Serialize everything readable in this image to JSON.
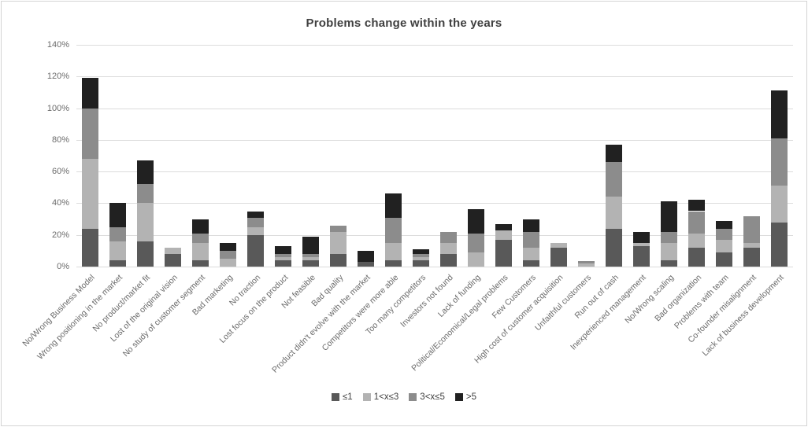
{
  "chart_data": {
    "type": "bar",
    "stacked": true,
    "title": "Problems change within the years",
    "grid": true,
    "legend_position": "bottom",
    "ylim": [
      0,
      140
    ],
    "y_ticks": [
      0,
      20,
      40,
      60,
      80,
      100,
      120,
      140
    ],
    "y_tick_labels": [
      "0%",
      "20%",
      "40%",
      "60%",
      "80%",
      "100%",
      "120%",
      "140%"
    ],
    "categories": [
      "No/Wrong Business Model",
      "Wrong positioning in the market",
      "No product/market fit",
      "Lost of the original vision",
      "No study of customer segment",
      "Bad marketing",
      "No traction",
      "Lost focus on the product",
      "Not feasible",
      "Bad quality",
      "Product didn't evolve with the market",
      "Competitors were more able",
      "Too many competitors",
      "Investors not found",
      "Lack of funding",
      "Political/Economical/Legal problems",
      "Few Customers",
      "High cost of customer acquisition",
      "Unfaithful customers",
      "Run out of cash",
      "Inexperienced management",
      "No/Wrong scaling",
      "Bad organization",
      "Problems with team",
      "Co-founder misalignment",
      "Lack of business development"
    ],
    "series": [
      {
        "name": "≤1",
        "color": "#595959",
        "values": [
          24,
          4,
          16,
          8,
          4,
          0,
          20,
          4,
          4,
          8,
          3,
          4,
          4,
          8,
          0,
          17,
          4,
          12,
          0,
          24,
          13,
          4,
          12,
          9,
          12,
          28
        ]
      },
      {
        "name": "1<x≤3",
        "color": "#b3b3b3",
        "values": [
          44,
          12,
          24,
          4,
          11,
          5,
          5,
          2,
          2,
          14,
          0,
          11,
          2,
          7,
          9,
          6,
          8,
          3,
          2,
          20,
          2,
          11,
          9,
          8,
          3,
          23
        ]
      },
      {
        "name": "3<x≤5",
        "color": "#8c8c8c",
        "values": [
          32,
          9,
          12,
          0,
          6,
          5,
          6,
          2,
          2,
          4,
          0,
          16,
          2,
          7,
          12,
          0,
          10,
          0,
          1.5,
          22,
          0,
          7,
          14,
          7,
          17,
          30
        ]
      },
      {
        "name": ">5",
        "color": "#212121",
        "values": [
          19,
          15,
          15,
          0,
          9,
          5,
          4,
          5,
          11,
          0,
          7,
          15,
          3,
          0,
          15,
          4,
          8,
          0,
          0,
          11,
          7,
          19,
          7,
          5,
          0,
          30
        ]
      }
    ]
  }
}
